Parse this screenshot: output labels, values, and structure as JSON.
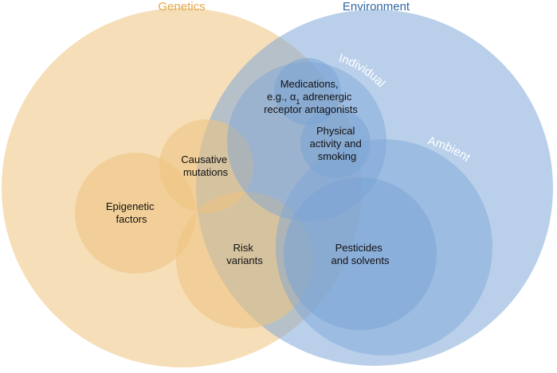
{
  "diagram": {
    "titles": {
      "genetics": "Genetics",
      "environment": "Environment"
    },
    "subset_labels": {
      "individual": "Individual",
      "ambient": "Ambient"
    },
    "nodes": {
      "medications": [
        "Medications,",
        "e.g., α",
        " adrenergic",
        "receptor antagonists"
      ],
      "medications_subscript": "1",
      "physical_activity": [
        "Physical",
        "activity and",
        "smoking"
      ],
      "causative_mutations": [
        "Causative",
        "mutations"
      ],
      "epigenetic_factors": [
        "Epigenetic",
        "factors"
      ],
      "risk_variants": [
        "Risk",
        "variants"
      ],
      "pesticides": [
        "Pesticides",
        "and solvents"
      ]
    },
    "colors": {
      "genetics": "#efc37e",
      "genetics_title": "#e0a84a",
      "environment": "#7aa4d6",
      "environment_title": "#2f68a8",
      "label_text": "#111111",
      "arc_label": "#ffffff"
    }
  }
}
